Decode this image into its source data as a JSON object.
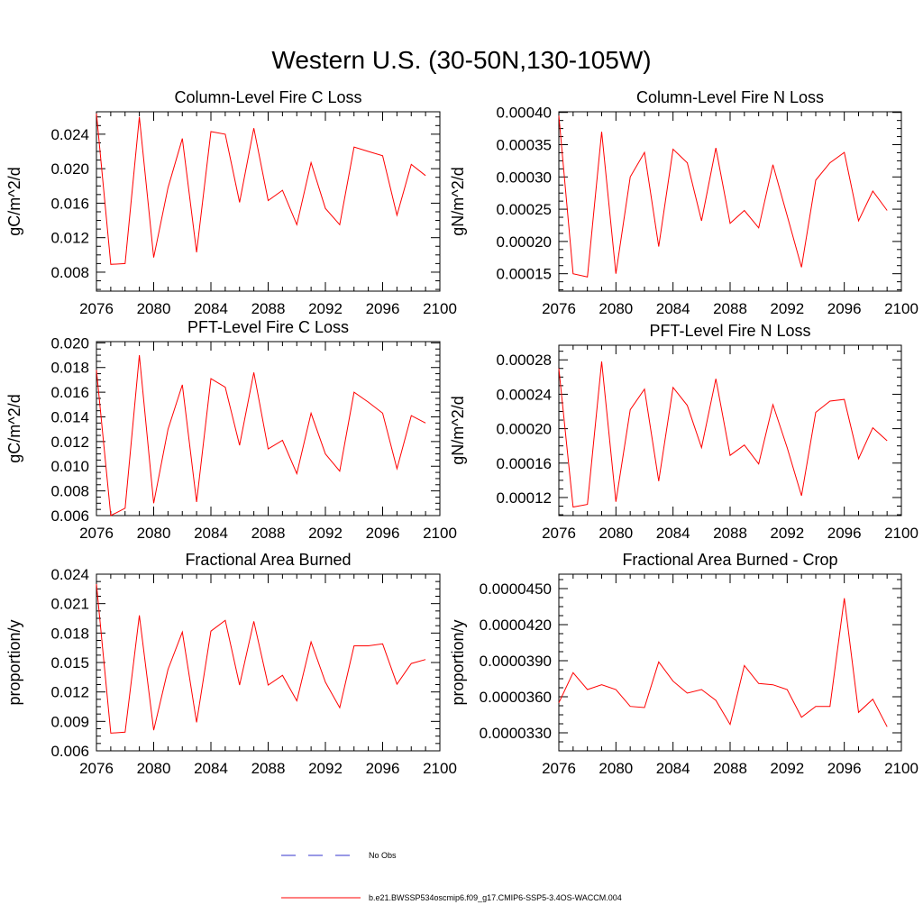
{
  "figure": {
    "title": "Western U.S. (30-50N,130-105W)"
  },
  "legend": {
    "obs_label": "No Obs",
    "model_label": "b.e21.BWSSP534oscmip6.f09_g17.CMIP6-SSP5-3.4OS-WACCM.004",
    "obs_color": "#3333cc",
    "model_color": "#ff0000"
  },
  "chart_data": [
    {
      "type": "line",
      "title": "Column-Level Fire C Loss",
      "xlabel": "",
      "ylabel": "gC/m^2/d",
      "xlim": [
        2076,
        2100
      ],
      "ylim": [
        0.0058,
        0.0266
      ],
      "xticks": [
        2076,
        2080,
        2084,
        2088,
        2092,
        2096,
        2100
      ],
      "xtick_labels": [
        "2076",
        "2080",
        "2084",
        "2088",
        "2092",
        "2096",
        "2100"
      ],
      "yticks": [
        0.008,
        0.012,
        0.016,
        0.02,
        0.024
      ],
      "ytick_labels": [
        "0.008",
        "0.012",
        "0.016",
        "0.020",
        "0.024"
      ],
      "x": [
        2076,
        2077,
        2078,
        2079,
        2080,
        2081,
        2082,
        2083,
        2084,
        2085,
        2086,
        2087,
        2088,
        2089,
        2090,
        2091,
        2092,
        2093,
        2094,
        2095,
        2096,
        2097,
        2098,
        2099
      ],
      "series": [
        {
          "color": "#ff0000",
          "values": [
            0.0264,
            0.0089,
            0.009,
            0.026,
            0.0097,
            0.0178,
            0.0235,
            0.0103,
            0.0243,
            0.024,
            0.0161,
            0.0247,
            0.0163,
            0.0175,
            0.0135,
            0.0207,
            0.0154,
            0.0135,
            0.0225,
            0.022,
            0.0215,
            0.0146,
            0.0205,
            0.0192
          ]
        }
      ]
    },
    {
      "type": "line",
      "title": "Column-Level Fire N Loss",
      "xlabel": "",
      "ylabel": "gN/m^2/d",
      "xlim": [
        2076,
        2100
      ],
      "ylim": [
        0.000123,
        0.000401
      ],
      "xticks": [
        2076,
        2080,
        2084,
        2088,
        2092,
        2096,
        2100
      ],
      "xtick_labels": [
        "2076",
        "2080",
        "2084",
        "2088",
        "2092",
        "2096",
        "2100"
      ],
      "yticks": [
        0.00015,
        0.0002,
        0.00025,
        0.0003,
        0.00035,
        0.0004
      ],
      "ytick_labels": [
        "0.00015",
        "0.00020",
        "0.00025",
        "0.00030",
        "0.00035",
        "0.00040"
      ],
      "x": [
        2076,
        2077,
        2078,
        2079,
        2080,
        2081,
        2082,
        2083,
        2084,
        2085,
        2086,
        2087,
        2088,
        2089,
        2090,
        2091,
        2092,
        2093,
        2094,
        2095,
        2096,
        2097,
        2098,
        2099
      ],
      "series": [
        {
          "color": "#ff0000",
          "values": [
            0.000395,
            0.00015,
            0.000145,
            0.00037,
            0.00015,
            0.0003,
            0.000338,
            0.000192,
            0.000343,
            0.000322,
            0.000232,
            0.000345,
            0.000228,
            0.000248,
            0.000221,
            0.000319,
            0.00024,
            0.00016,
            0.000295,
            0.000322,
            0.000338,
            0.000232,
            0.000278,
            0.000248
          ]
        }
      ]
    },
    {
      "type": "line",
      "title": "PFT-Level Fire C Loss",
      "xlabel": "",
      "ylabel": "gC/m^2/d",
      "xlim": [
        2076,
        2100
      ],
      "ylim": [
        0.006,
        0.0201
      ],
      "xticks": [
        2076,
        2080,
        2084,
        2088,
        2092,
        2096,
        2100
      ],
      "xtick_labels": [
        "2076",
        "2080",
        "2084",
        "2088",
        "2092",
        "2096",
        "2100"
      ],
      "yticks": [
        0.006,
        0.008,
        0.01,
        0.012,
        0.014,
        0.016,
        0.018,
        0.02
      ],
      "ytick_labels": [
        "0.006",
        "0.008",
        "0.010",
        "0.012",
        "0.014",
        "0.016",
        "0.018",
        "0.020"
      ],
      "x": [
        2076,
        2077,
        2078,
        2079,
        2080,
        2081,
        2082,
        2083,
        2084,
        2085,
        2086,
        2087,
        2088,
        2089,
        2090,
        2091,
        2092,
        2093,
        2094,
        2095,
        2096,
        2097,
        2098,
        2099
      ],
      "series": [
        {
          "color": "#ff0000",
          "values": [
            0.0178,
            0.006,
            0.0066,
            0.019,
            0.007,
            0.013,
            0.0166,
            0.0071,
            0.0171,
            0.0164,
            0.0117,
            0.0176,
            0.0114,
            0.0121,
            0.0094,
            0.0143,
            0.011,
            0.0096,
            0.016,
            0.0152,
            0.0143,
            0.0098,
            0.0141,
            0.0135
          ]
        }
      ]
    },
    {
      "type": "line",
      "title": "PFT-Level Fire N Loss",
      "xlabel": "",
      "ylabel": "gN/m^2/d",
      "xlim": [
        2076,
        2100
      ],
      "ylim": [
        9.9e-05,
        0.000297
      ],
      "xticks": [
        2076,
        2080,
        2084,
        2088,
        2092,
        2096,
        2100
      ],
      "xtick_labels": [
        "2076",
        "2080",
        "2084",
        "2088",
        "2092",
        "2096",
        "2100"
      ],
      "yticks": [
        0.00012,
        0.00016,
        0.0002,
        0.00024,
        0.00028
      ],
      "ytick_labels": [
        "0.00012",
        "0.00016",
        "0.00020",
        "0.00024",
        "0.00028"
      ],
      "x": [
        2076,
        2077,
        2078,
        2079,
        2080,
        2081,
        2082,
        2083,
        2084,
        2085,
        2086,
        2087,
        2088,
        2089,
        2090,
        2091,
        2092,
        2093,
        2094,
        2095,
        2096,
        2097,
        2098,
        2099
      ],
      "series": [
        {
          "color": "#ff0000",
          "values": [
            0.00027,
            0.000109,
            0.000112,
            0.000278,
            0.000115,
            0.000222,
            0.000246,
            0.000139,
            0.000248,
            0.000227,
            0.000178,
            0.000258,
            0.000169,
            0.000181,
            0.000159,
            0.000228,
            0.000178,
            0.000122,
            0.000219,
            0.000232,
            0.000234,
            0.000165,
            0.000201,
            0.000186
          ]
        }
      ]
    },
    {
      "type": "line",
      "title": "Fractional Area Burned",
      "xlabel": "",
      "ylabel": "proportion/y",
      "xlim": [
        2076,
        2100
      ],
      "ylim": [
        0.006,
        0.024
      ],
      "xticks": [
        2076,
        2080,
        2084,
        2088,
        2092,
        2096,
        2100
      ],
      "xtick_labels": [
        "2076",
        "2080",
        "2084",
        "2088",
        "2092",
        "2096",
        "2100"
      ],
      "yticks": [
        0.006,
        0.009,
        0.012,
        0.015,
        0.018,
        0.021,
        0.024
      ],
      "ytick_labels": [
        "0.006",
        "0.009",
        "0.012",
        "0.015",
        "0.018",
        "0.021",
        "0.024"
      ],
      "x": [
        2076,
        2077,
        2078,
        2079,
        2080,
        2081,
        2082,
        2083,
        2084,
        2085,
        2086,
        2087,
        2088,
        2089,
        2090,
        2091,
        2092,
        2093,
        2094,
        2095,
        2096,
        2097,
        2098,
        2099
      ],
      "series": [
        {
          "color": "#ff0000",
          "values": [
            0.023,
            0.0078,
            0.0079,
            0.0198,
            0.0081,
            0.0143,
            0.0181,
            0.0089,
            0.0182,
            0.0193,
            0.0127,
            0.0192,
            0.0127,
            0.0137,
            0.0111,
            0.0171,
            0.013,
            0.0104,
            0.0167,
            0.0167,
            0.0169,
            0.0128,
            0.0149,
            0.0153
          ]
        }
      ]
    },
    {
      "type": "line",
      "title": "Fractional Area Burned - Crop",
      "xlabel": "",
      "ylabel": "proportion/y",
      "xlim": [
        2076,
        2100
      ],
      "ylim": [
        3.15e-05,
        4.62e-05
      ],
      "xticks": [
        2076,
        2080,
        2084,
        2088,
        2092,
        2096,
        2100
      ],
      "xtick_labels": [
        "2076",
        "2080",
        "2084",
        "2088",
        "2092",
        "2096",
        "2100"
      ],
      "yticks": [
        3.3e-05,
        3.6e-05,
        3.9e-05,
        4.2e-05,
        4.5e-05
      ],
      "ytick_labels": [
        "0.0000330",
        "0.0000360",
        "0.0000390",
        "0.0000420",
        "0.0000450"
      ],
      "x": [
        2076,
        2077,
        2078,
        2079,
        2080,
        2081,
        2082,
        2083,
        2084,
        2085,
        2086,
        2087,
        2088,
        2089,
        2090,
        2091,
        2092,
        2093,
        2094,
        2095,
        2096,
        2097,
        2098,
        2099
      ],
      "series": [
        {
          "color": "#ff0000",
          "values": [
            3.55e-05,
            3.8e-05,
            3.66e-05,
            3.7e-05,
            3.66e-05,
            3.52e-05,
            3.51e-05,
            3.89e-05,
            3.73e-05,
            3.63e-05,
            3.66e-05,
            3.57e-05,
            3.37e-05,
            3.86e-05,
            3.71e-05,
            3.7e-05,
            3.66e-05,
            3.43e-05,
            3.52e-05,
            3.52e-05,
            4.42e-05,
            3.47e-05,
            3.58e-05,
            3.35e-05
          ]
        }
      ]
    }
  ]
}
